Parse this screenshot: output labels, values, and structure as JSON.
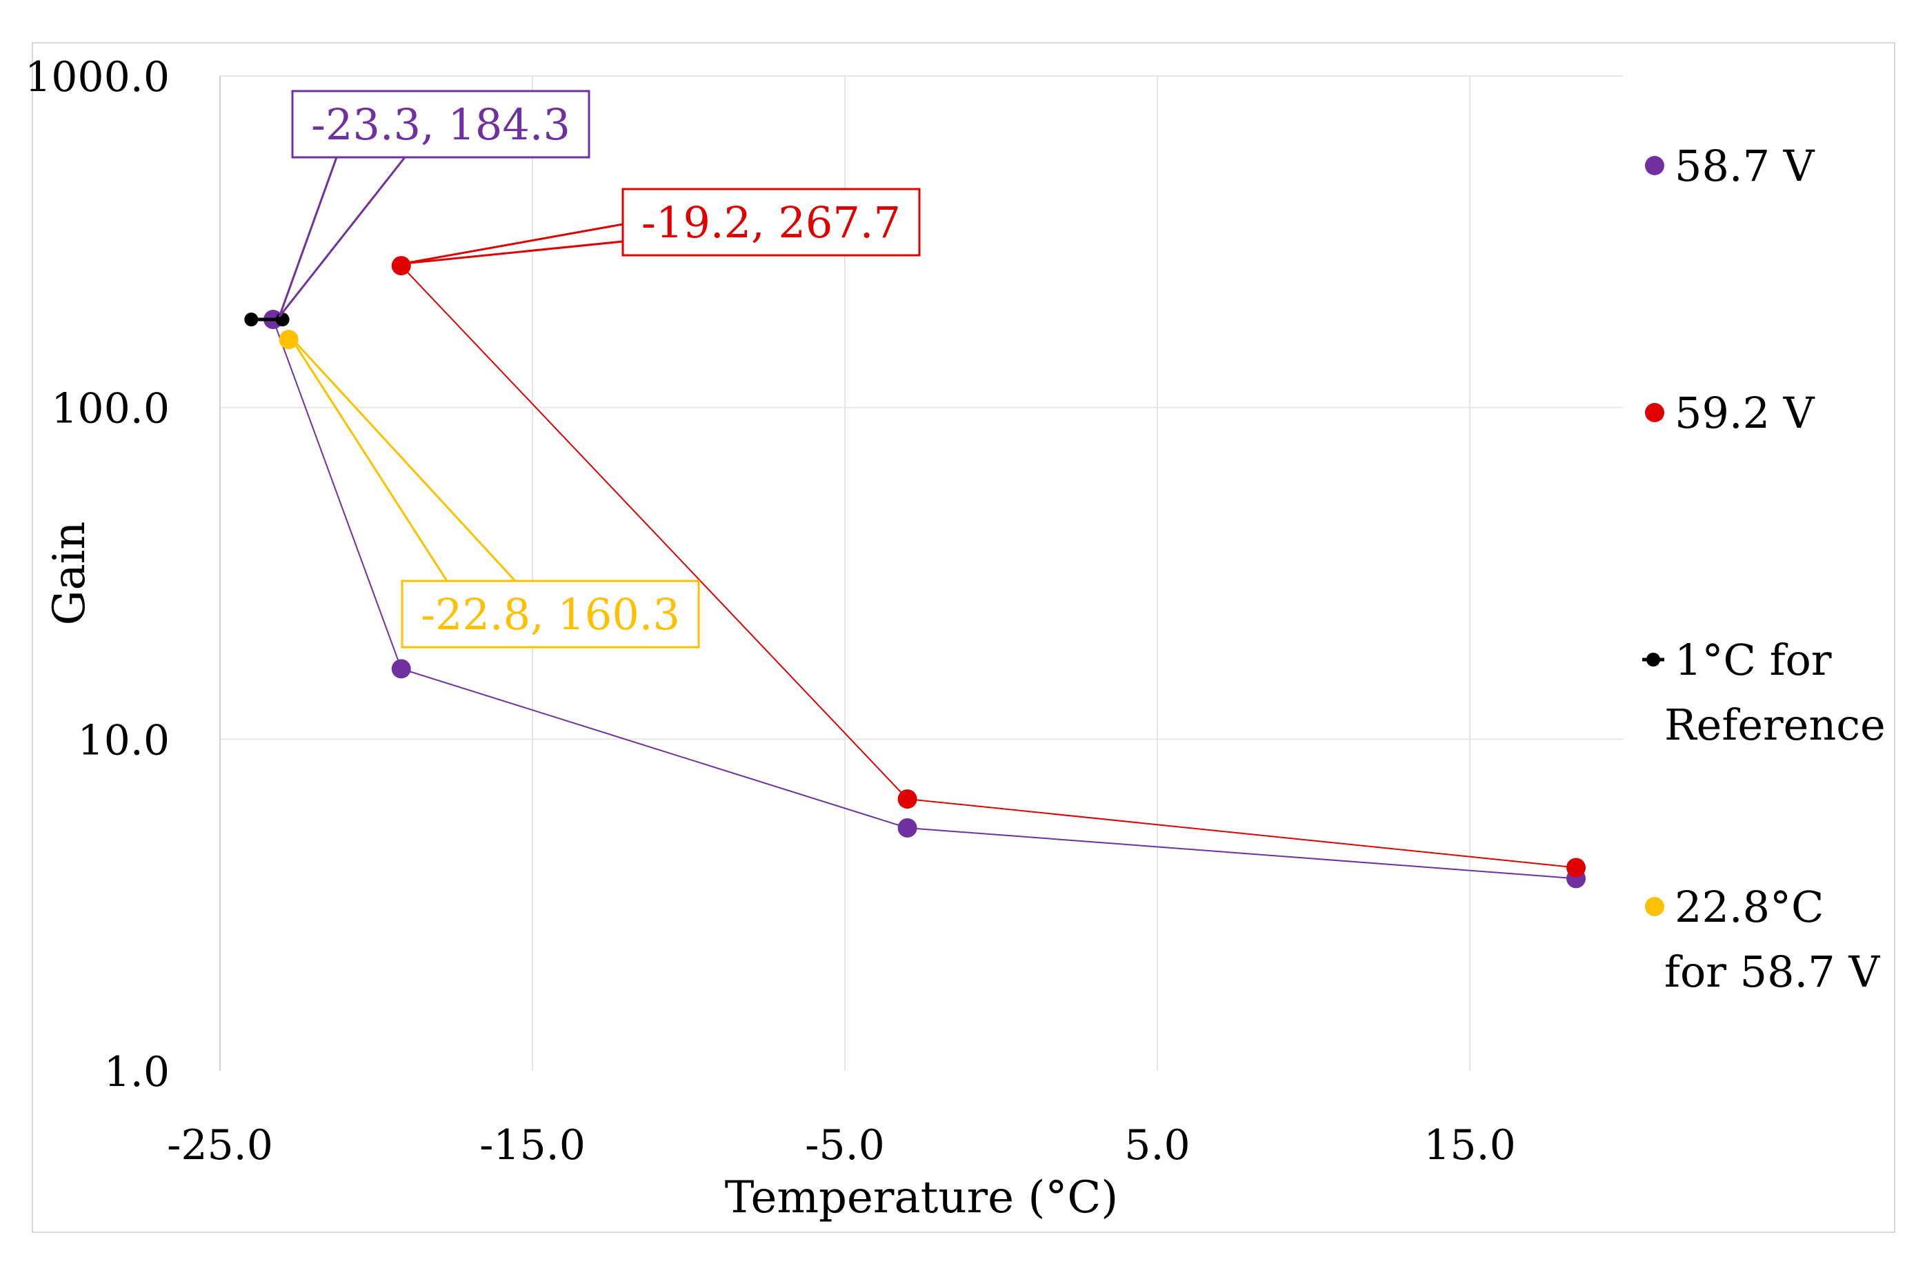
{
  "colors": {
    "purple": "#7030a0",
    "red": "#e00000",
    "yellow": "#ffc000",
    "black": "#000000",
    "grid": "#e6e6e6"
  },
  "chart_data": {
    "type": "scatter",
    "xlabel": "Temperature (°C)",
    "ylabel": "Gain",
    "yscale": "log",
    "xlim": [
      -25,
      20
    ],
    "ylim": [
      1,
      1000
    ],
    "xticks": [
      -25,
      -15,
      -5,
      5,
      15
    ],
    "xtick_labels": [
      "-25.0",
      "-15.0",
      "-5.0",
      "5.0",
      "15.0"
    ],
    "yticks": [
      1,
      10,
      100,
      1000
    ],
    "ytick_labels": [
      "1.0",
      "10.0",
      "100.0",
      "1000.0"
    ],
    "grid": true,
    "legend_position": "right",
    "series": [
      {
        "name": "58.7 V",
        "legend": [
          "58.7 V"
        ],
        "color": "#7030a0",
        "lines": true,
        "x": [
          -23.3,
          -19.2,
          -3.0,
          18.4
        ],
        "y": [
          184.3,
          16.3,
          5.4,
          3.8
        ]
      },
      {
        "name": "59.2 V",
        "legend": [
          "59.2 V"
        ],
        "color": "#e00000",
        "lines": true,
        "x": [
          -19.2,
          -3.0,
          18.4
        ],
        "y": [
          267.7,
          6.6,
          4.1
        ]
      },
      {
        "name": "1°C for Reference",
        "legend": [
          "1°C for",
          "Reference"
        ],
        "color": "#000000",
        "lines": true,
        "small": true,
        "x": [
          -24.0,
          -23.0
        ],
        "y": [
          184.3,
          184.3
        ]
      },
      {
        "name": "22.8°C for 58.7 V",
        "legend": [
          "22.8°C",
          "for 58.7 V"
        ],
        "color": "#ffc000",
        "lines": false,
        "x": [
          -22.8
        ],
        "y": [
          160.3
        ]
      }
    ],
    "annotations": [
      {
        "text": "-23.3, 184.3",
        "color": "#7030a0",
        "point": [
          -23.3,
          184.3
        ]
      },
      {
        "text": "-19.2, 267.7",
        "color": "#e00000",
        "point": [
          -19.2,
          267.7
        ]
      },
      {
        "text": "-22.8, 160.3",
        "color": "#ffc000",
        "point": [
          -22.8,
          160.3
        ]
      }
    ]
  }
}
